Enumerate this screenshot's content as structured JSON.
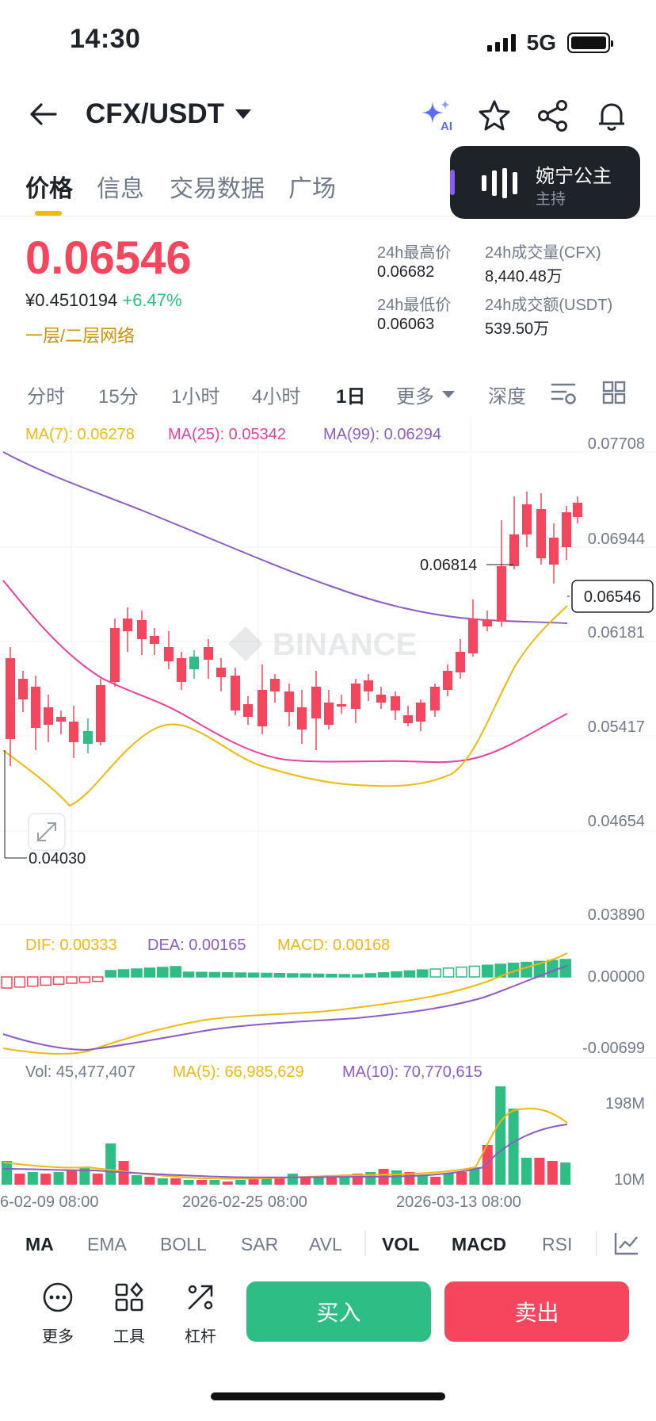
{
  "status": {
    "time": "14:30",
    "network": "5G"
  },
  "header": {
    "pair": "CFX/USDT",
    "ai_label": "AI"
  },
  "tabs": [
    "价格",
    "信息",
    "交易数据",
    "广场"
  ],
  "live": {
    "host_name": "婉宁公主",
    "role": "主持"
  },
  "price": {
    "last": "0.06546",
    "cny": "¥0.4510194",
    "change": "+6.47%",
    "network": "一层/二层网络"
  },
  "stats": {
    "high_label": "24h最高价",
    "high": "0.06682",
    "low_label": "24h最低价",
    "low": "0.06063",
    "vol_label": "24h成交量(CFX)",
    "vol": "8,440.48万",
    "amt_label": "24h成交额(USDT)",
    "amt": "539.50万"
  },
  "intervals": [
    "分时",
    "15分",
    "1小时",
    "4小时",
    "1日",
    "更多",
    "深度"
  ],
  "active_interval": "1日",
  "chart": {
    "ma_legend": {
      "ma7": "MA(7): 0.06278",
      "ma25": "MA(25): 0.05342",
      "ma99": "MA(99): 0.06294"
    },
    "price_axis": [
      "0.07708",
      "0.06944",
      "0.06181",
      "0.05417",
      "0.04654",
      "0.03890"
    ],
    "current_price_tag": "0.06546",
    "high_marker": "0.06814",
    "low_marker": "0.04030",
    "watermark": "BINANCE",
    "macd_legend": {
      "dif": "DIF: 0.00333",
      "dea": "DEA: 0.00165",
      "macd": "MACD: 0.00168"
    },
    "macd_axis": [
      "0.00000",
      "-0.00699"
    ],
    "vol_legend": {
      "vol": "Vol: 45,477,407",
      "ma5": "MA(5): 66,985,629",
      "ma10": "MA(10): 70,770,615"
    },
    "vol_axis": [
      "198M",
      "10M"
    ],
    "dates": [
      "6-02-09 08:00",
      "2026-02-25 08:00",
      "2026-03-13 08:00"
    ],
    "colors": {
      "up": "#2ebd85",
      "down": "#f6465d",
      "ma7": "#f0b90b",
      "ma25": "#e8409c",
      "ma99": "#8e5bc6"
    }
  },
  "indicators": [
    "MA",
    "EMA",
    "BOLL",
    "SAR",
    "AVL",
    "VOL",
    "MACD",
    "RSI"
  ],
  "bottom": {
    "more": "更多",
    "tools": "工具",
    "leverage": "杠杆",
    "buy": "买入",
    "sell": "卖出"
  }
}
